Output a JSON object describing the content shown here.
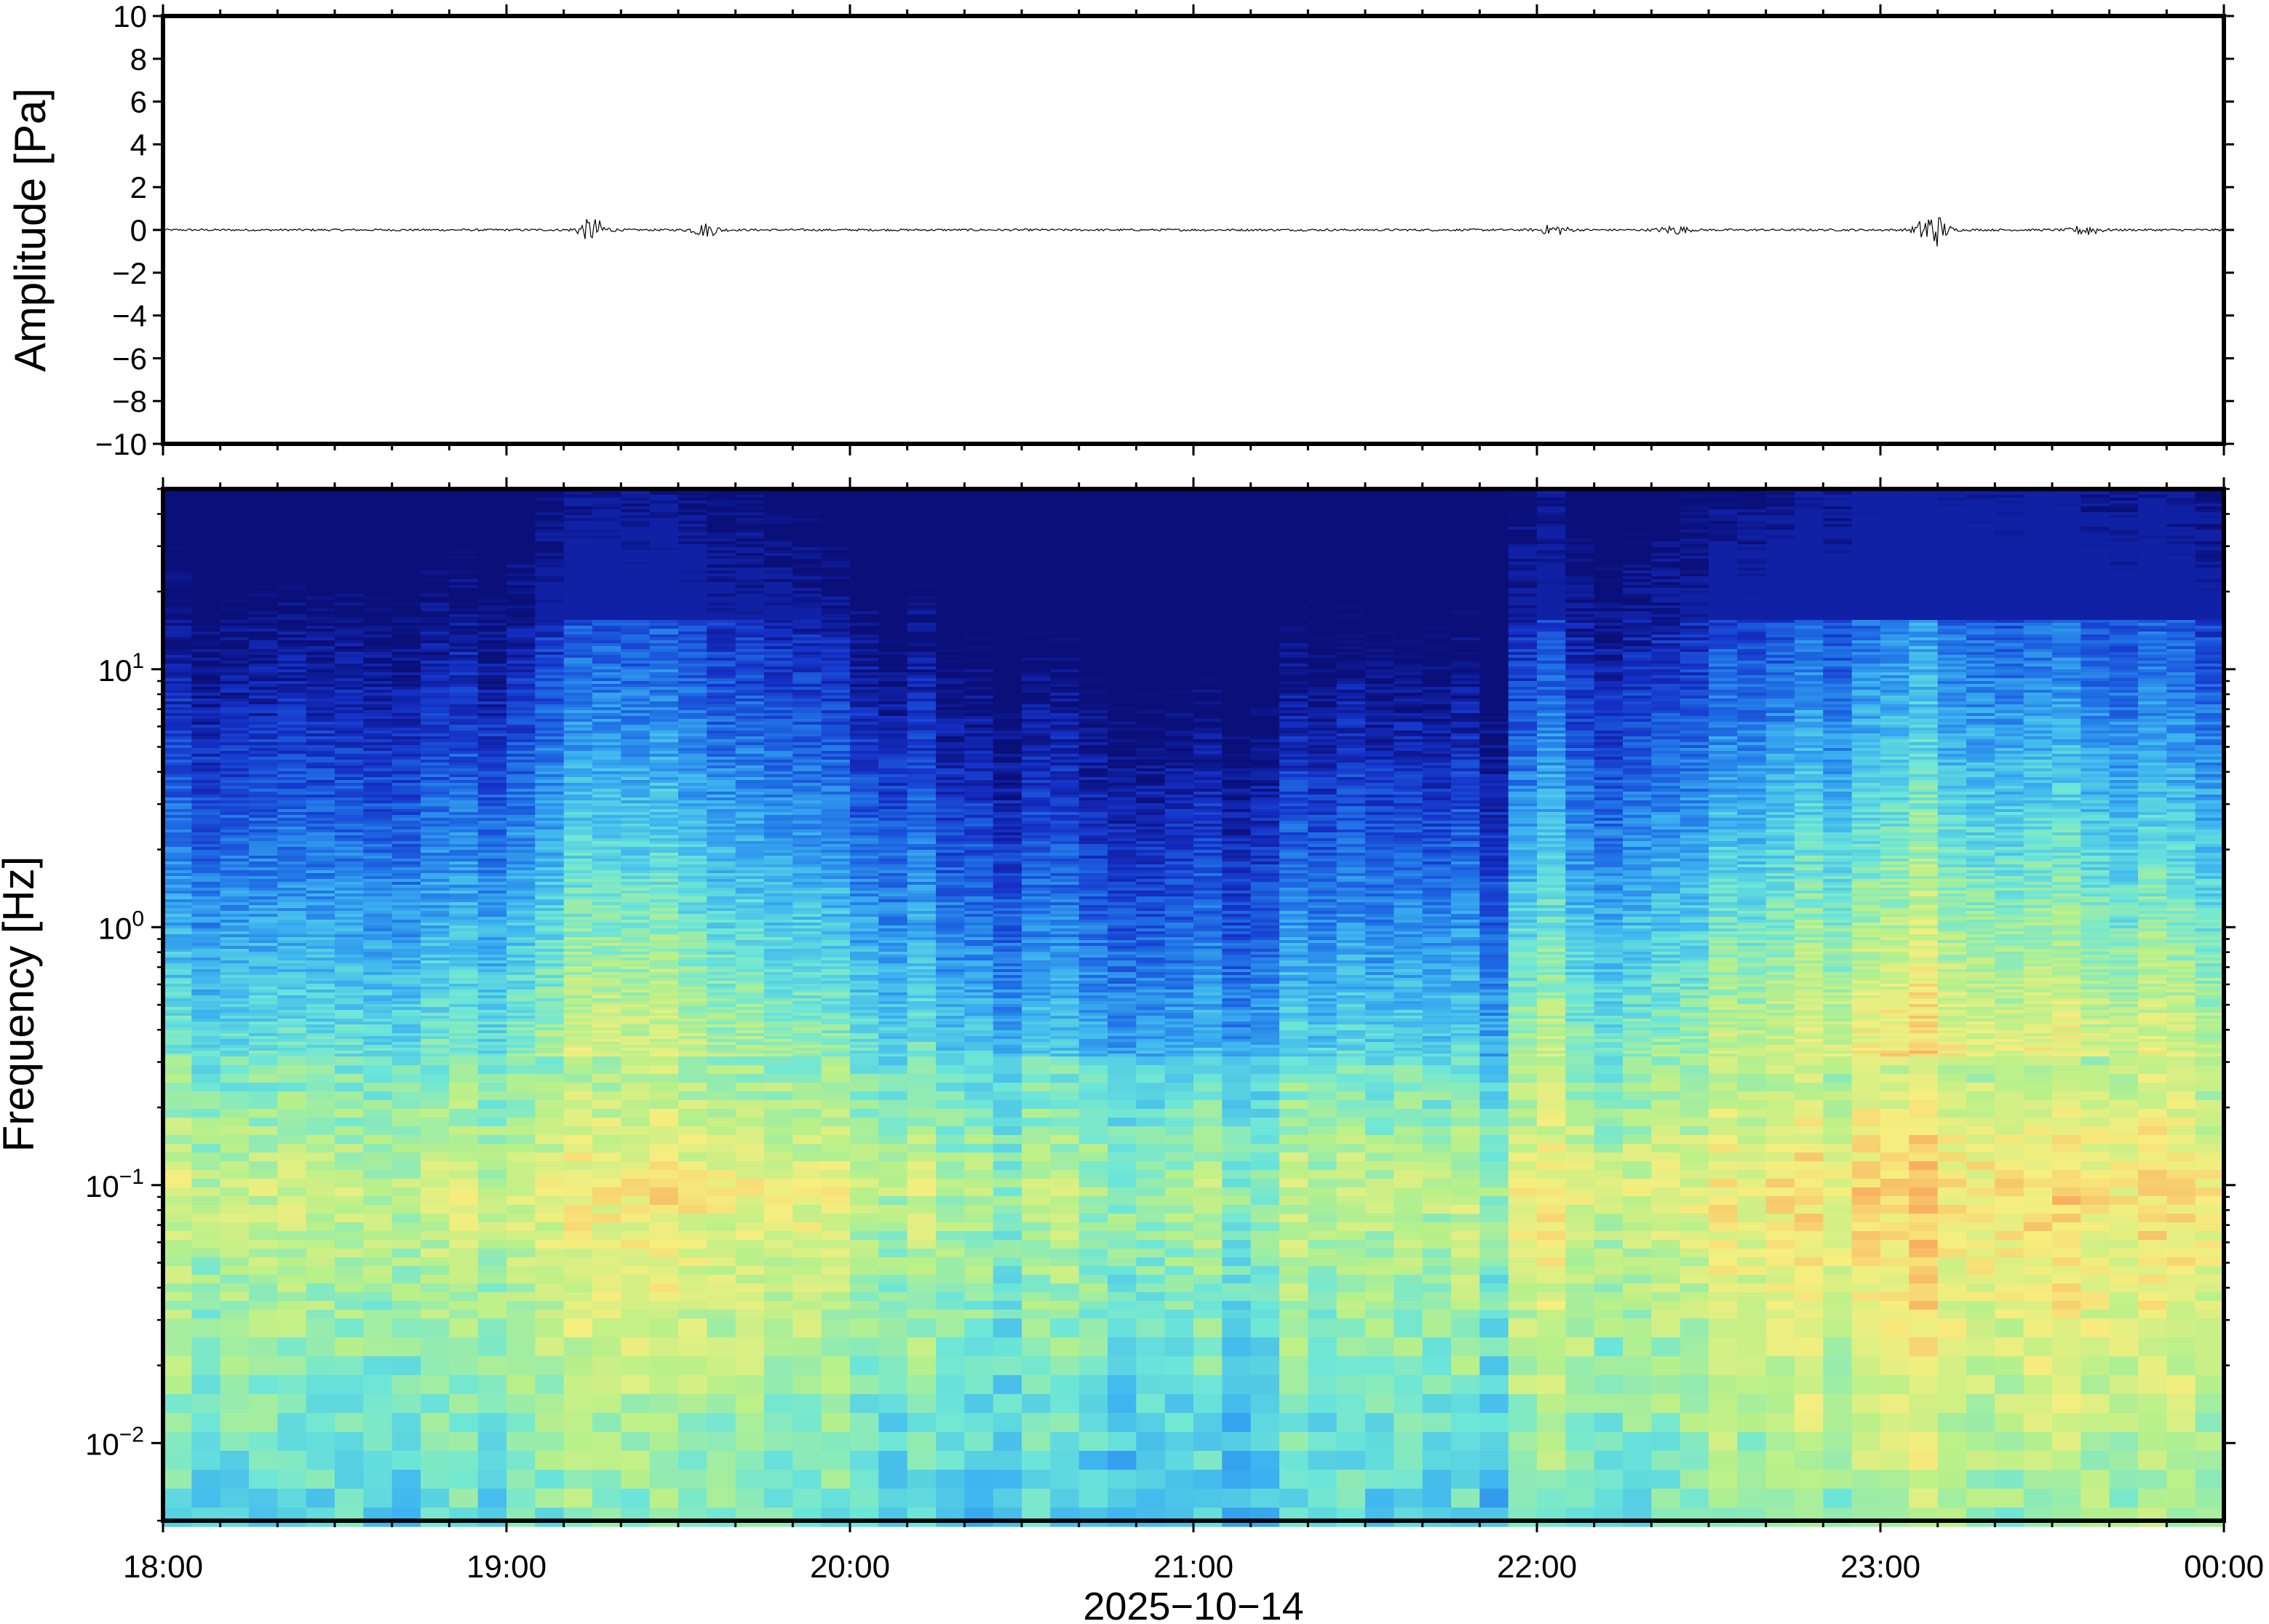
{
  "chart_data": [
    {
      "type": "line",
      "panel": "waveform",
      "ylabel": "Amplitude [Pa]",
      "ylim": [
        -10,
        10
      ],
      "yticks": [
        10,
        8,
        6,
        4,
        2,
        0,
        -2,
        -4,
        -6,
        -8,
        -10
      ],
      "ytick_labels": [
        "10",
        "8",
        "6",
        "4",
        "2",
        "0",
        "−2",
        "−4",
        "−6",
        "−8",
        "−10"
      ],
      "x_range_hours": [
        18,
        24
      ],
      "baseline": 0,
      "bursts": [
        {
          "t": 19.25,
          "amp": 0.55
        },
        {
          "t": 19.58,
          "amp": 0.3
        },
        {
          "t": 22.05,
          "amp": 0.25
        },
        {
          "t": 22.4,
          "amp": 0.2
        },
        {
          "t": 23.15,
          "amp": 0.9
        },
        {
          "t": 23.6,
          "amp": 0.25
        }
      ]
    },
    {
      "type": "heatmap",
      "panel": "spectrogram",
      "ylabel": "Frequency [Hz]",
      "y_scale": "log",
      "ylim": [
        0.005,
        50
      ],
      "yticks": [
        0.01,
        0.1,
        1,
        10
      ],
      "colormap": [
        "#0a0f7a",
        "#1530c8",
        "#1f6fe6",
        "#3db4f0",
        "#6de6d8",
        "#b8f08a",
        "#f6ee7e",
        "#f8b060"
      ],
      "x_range_hours": [
        18,
        24
      ],
      "xlabel": "2025−10−14",
      "xtick_labels": [
        "18:00",
        "19:00",
        "20:00",
        "21:00",
        "22:00",
        "23:00",
        "00:00"
      ],
      "xticks_hours": [
        18,
        19,
        20,
        21,
        22,
        23,
        24
      ],
      "activity_profile": [
        {
          "t": 18.0,
          "level": 0.35
        },
        {
          "t": 18.5,
          "level": 0.4
        },
        {
          "t": 19.0,
          "level": 0.45
        },
        {
          "t": 19.25,
          "level": 0.9
        },
        {
          "t": 19.6,
          "level": 0.7
        },
        {
          "t": 20.0,
          "level": 0.45
        },
        {
          "t": 20.5,
          "level": 0.2
        },
        {
          "t": 21.0,
          "level": 0.1
        },
        {
          "t": 21.5,
          "level": 0.3
        },
        {
          "t": 21.9,
          "level": 0.2
        },
        {
          "t": 22.0,
          "level": 0.85
        },
        {
          "t": 22.12,
          "level": 0.45
        },
        {
          "t": 22.5,
          "level": 0.65
        },
        {
          "t": 23.15,
          "level": 1.0
        },
        {
          "t": 23.5,
          "level": 0.8
        },
        {
          "t": 24.0,
          "level": 0.7
        }
      ]
    }
  ]
}
